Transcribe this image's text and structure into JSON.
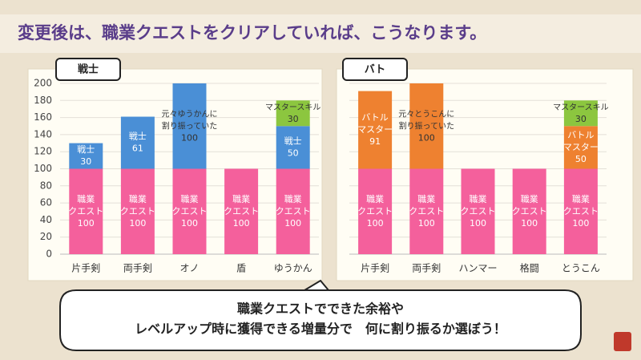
{
  "header": {
    "title": "変更後は、職業クエストをクリアしていれば、こうなります。"
  },
  "chart_data": [
    {
      "type": "stacked_bar",
      "title": "戦士",
      "categories": [
        "片手剣",
        "両手剣",
        "オノ",
        "盾",
        "ゆうかん"
      ],
      "ylim": [
        0,
        200
      ],
      "yticks": [
        0,
        20,
        40,
        60,
        80,
        100,
        120,
        140,
        160,
        180,
        200
      ],
      "grid": true,
      "show_ytick_labels": true,
      "series": [
        {
          "name": [
            "職業",
            "クエスト"
          ],
          "color": "#f4609c",
          "label_color": "#ffffff",
          "values": [
            100,
            100,
            100,
            100,
            100
          ]
        },
        {
          "name": [
            "戦士"
          ],
          "color": "#4a8fd6",
          "label_color": "#ffffff",
          "values": [
            30,
            61,
            null,
            null,
            50
          ]
        },
        {
          "name": [
            "元々ゆうかんに",
            "割り振っていた"
          ],
          "color": "#4a8fd6",
          "label_color": "#333333",
          "values": [
            null,
            null,
            100,
            null,
            null
          ]
        },
        {
          "name": [
            "マスタースキル"
          ],
          "color": "#8cc63f",
          "label_color": "#333333",
          "values": [
            null,
            null,
            null,
            null,
            30
          ]
        }
      ]
    },
    {
      "type": "stacked_bar",
      "title": "バト",
      "categories": [
        "片手剣",
        "両手剣",
        "ハンマー",
        "格闘",
        "とうこん"
      ],
      "ylim": [
        0,
        200
      ],
      "yticks": [
        0,
        20,
        40,
        60,
        80,
        100,
        120,
        140,
        160,
        180,
        200
      ],
      "grid": true,
      "show_ytick_labels": false,
      "series": [
        {
          "name": [
            "職業",
            "クエスト"
          ],
          "color": "#f4609c",
          "label_color": "#ffffff",
          "values": [
            100,
            100,
            100,
            100,
            100
          ]
        },
        {
          "name": [
            "バトル",
            "マスター"
          ],
          "color": "#ee8130",
          "label_color": "#ffffff",
          "values": [
            91,
            null,
            null,
            null,
            50
          ]
        },
        {
          "name": [
            "元々とうこんに",
            "割り振っていた"
          ],
          "color": "#ee8130",
          "label_color": "#333333",
          "values": [
            null,
            100,
            null,
            null,
            null
          ]
        },
        {
          "name": [
            "マスタースキル"
          ],
          "color": "#8cc63f",
          "label_color": "#333333",
          "values": [
            null,
            null,
            null,
            null,
            30
          ]
        }
      ]
    }
  ],
  "callout": {
    "lines": [
      "職業クエストでできた余裕や",
      "レベルアップ時に獲得できる増量分で　何に割り振るか選ぼう！"
    ]
  }
}
